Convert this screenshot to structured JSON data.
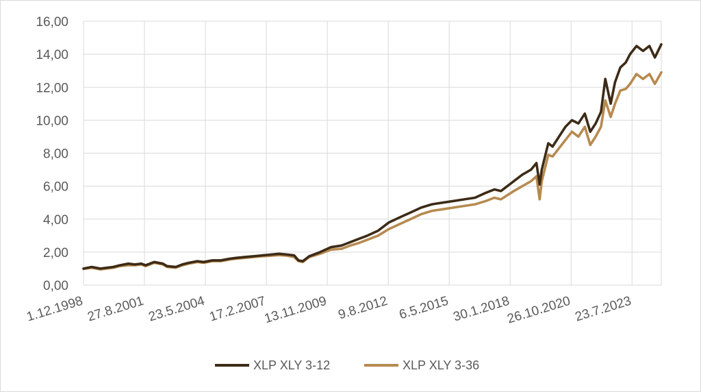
{
  "chart_data": {
    "type": "line",
    "title": "",
    "xlabel": "",
    "ylabel": "",
    "ylim": [
      0,
      16
    ],
    "y_ticks": [
      "0,00",
      "2,00",
      "4,00",
      "6,00",
      "8,00",
      "10,00",
      "12,00",
      "14,00",
      "16,00"
    ],
    "x_range": [
      1998.917,
      2025.75
    ],
    "x_ticks": [
      "1.12.1998",
      "27.8.2001",
      "23.5.2004",
      "17.2.2007",
      "13.11.2009",
      "9.8.2012",
      "6.5.2015",
      "30.1.2018",
      "26.10.2020",
      "23.7.2023"
    ],
    "grid": true,
    "legend_position": "bottom",
    "series": [
      {
        "name": "XLP XLY 3-12",
        "color": "#3d2b17",
        "x": [
          1998.92,
          1999.3,
          1999.7,
          2000.0,
          2000.3,
          2000.6,
          2001.0,
          2001.3,
          2001.6,
          2001.8,
          2002.2,
          2002.6,
          2002.8,
          2003.2,
          2003.5,
          2003.8,
          2004.2,
          2004.5,
          2004.9,
          2005.3,
          2005.7,
          2006.0,
          2006.4,
          2006.8,
          2007.2,
          2007.6,
          2008.0,
          2008.4,
          2008.7,
          2008.9,
          2009.1,
          2009.4,
          2009.9,
          2010.4,
          2010.9,
          2011.3,
          2011.7,
          2012.1,
          2012.6,
          2013.1,
          2013.6,
          2014.1,
          2014.6,
          2015.1,
          2015.6,
          2016.1,
          2016.6,
          2017.1,
          2017.6,
          2018.0,
          2018.3,
          2018.9,
          2019.3,
          2019.7,
          2019.95,
          2020.1,
          2020.2,
          2020.5,
          2020.7,
          2021.0,
          2021.3,
          2021.6,
          2021.9,
          2022.2,
          2022.45,
          2022.7,
          2022.95,
          2023.15,
          2023.4,
          2023.6,
          2023.85,
          2024.1,
          2024.3,
          2024.6,
          2024.9,
          2025.2,
          2025.45,
          2025.75
        ],
        "y": [
          1.0,
          1.1,
          1.0,
          1.05,
          1.1,
          1.2,
          1.3,
          1.25,
          1.3,
          1.2,
          1.4,
          1.3,
          1.15,
          1.1,
          1.25,
          1.35,
          1.45,
          1.4,
          1.5,
          1.5,
          1.6,
          1.65,
          1.7,
          1.75,
          1.8,
          1.85,
          1.9,
          1.85,
          1.8,
          1.5,
          1.45,
          1.75,
          2.0,
          2.3,
          2.4,
          2.6,
          2.8,
          3.0,
          3.3,
          3.8,
          4.1,
          4.4,
          4.7,
          4.9,
          5.0,
          5.1,
          5.2,
          5.3,
          5.6,
          5.8,
          5.7,
          6.3,
          6.7,
          7.0,
          7.4,
          6.1,
          7.0,
          8.6,
          8.4,
          9.0,
          9.6,
          10.0,
          9.8,
          10.4,
          9.3,
          9.8,
          10.5,
          12.5,
          11.0,
          12.3,
          13.2,
          13.5,
          14.0,
          14.5,
          14.2,
          14.5,
          13.8,
          14.6
        ]
      },
      {
        "name": "XLP XLY 3-36",
        "color": "#b68a4f",
        "x": [
          1998.92,
          1999.3,
          1999.7,
          2000.0,
          2000.3,
          2000.6,
          2001.0,
          2001.3,
          2001.6,
          2001.8,
          2002.2,
          2002.6,
          2002.8,
          2003.2,
          2003.5,
          2003.8,
          2004.2,
          2004.5,
          2004.9,
          2005.3,
          2005.7,
          2006.0,
          2006.4,
          2006.8,
          2007.2,
          2007.6,
          2008.0,
          2008.4,
          2008.7,
          2008.9,
          2009.1,
          2009.4,
          2009.9,
          2010.4,
          2010.9,
          2011.3,
          2011.7,
          2012.1,
          2012.6,
          2013.1,
          2013.6,
          2014.1,
          2014.6,
          2015.1,
          2015.6,
          2016.1,
          2016.6,
          2017.1,
          2017.6,
          2018.0,
          2018.3,
          2018.9,
          2019.3,
          2019.7,
          2019.95,
          2020.1,
          2020.2,
          2020.5,
          2020.7,
          2021.0,
          2021.3,
          2021.6,
          2021.9,
          2022.2,
          2022.45,
          2022.7,
          2022.95,
          2023.15,
          2023.4,
          2023.6,
          2023.85,
          2024.1,
          2024.3,
          2024.6,
          2024.9,
          2025.2,
          2025.45,
          2025.75
        ],
        "y": [
          0.98,
          1.05,
          0.95,
          1.0,
          1.05,
          1.15,
          1.2,
          1.2,
          1.25,
          1.15,
          1.35,
          1.25,
          1.1,
          1.05,
          1.2,
          1.3,
          1.4,
          1.35,
          1.45,
          1.45,
          1.55,
          1.6,
          1.65,
          1.7,
          1.75,
          1.78,
          1.82,
          1.78,
          1.7,
          1.45,
          1.4,
          1.7,
          1.9,
          2.15,
          2.2,
          2.4,
          2.55,
          2.75,
          3.0,
          3.4,
          3.7,
          4.0,
          4.3,
          4.5,
          4.6,
          4.7,
          4.8,
          4.9,
          5.1,
          5.3,
          5.2,
          5.7,
          6.0,
          6.3,
          6.6,
          5.2,
          6.3,
          7.9,
          7.8,
          8.3,
          8.8,
          9.3,
          9.0,
          9.6,
          8.5,
          9.0,
          9.6,
          11.2,
          10.2,
          11.0,
          11.8,
          11.9,
          12.2,
          12.8,
          12.5,
          12.8,
          12.2,
          12.9
        ]
      }
    ]
  }
}
